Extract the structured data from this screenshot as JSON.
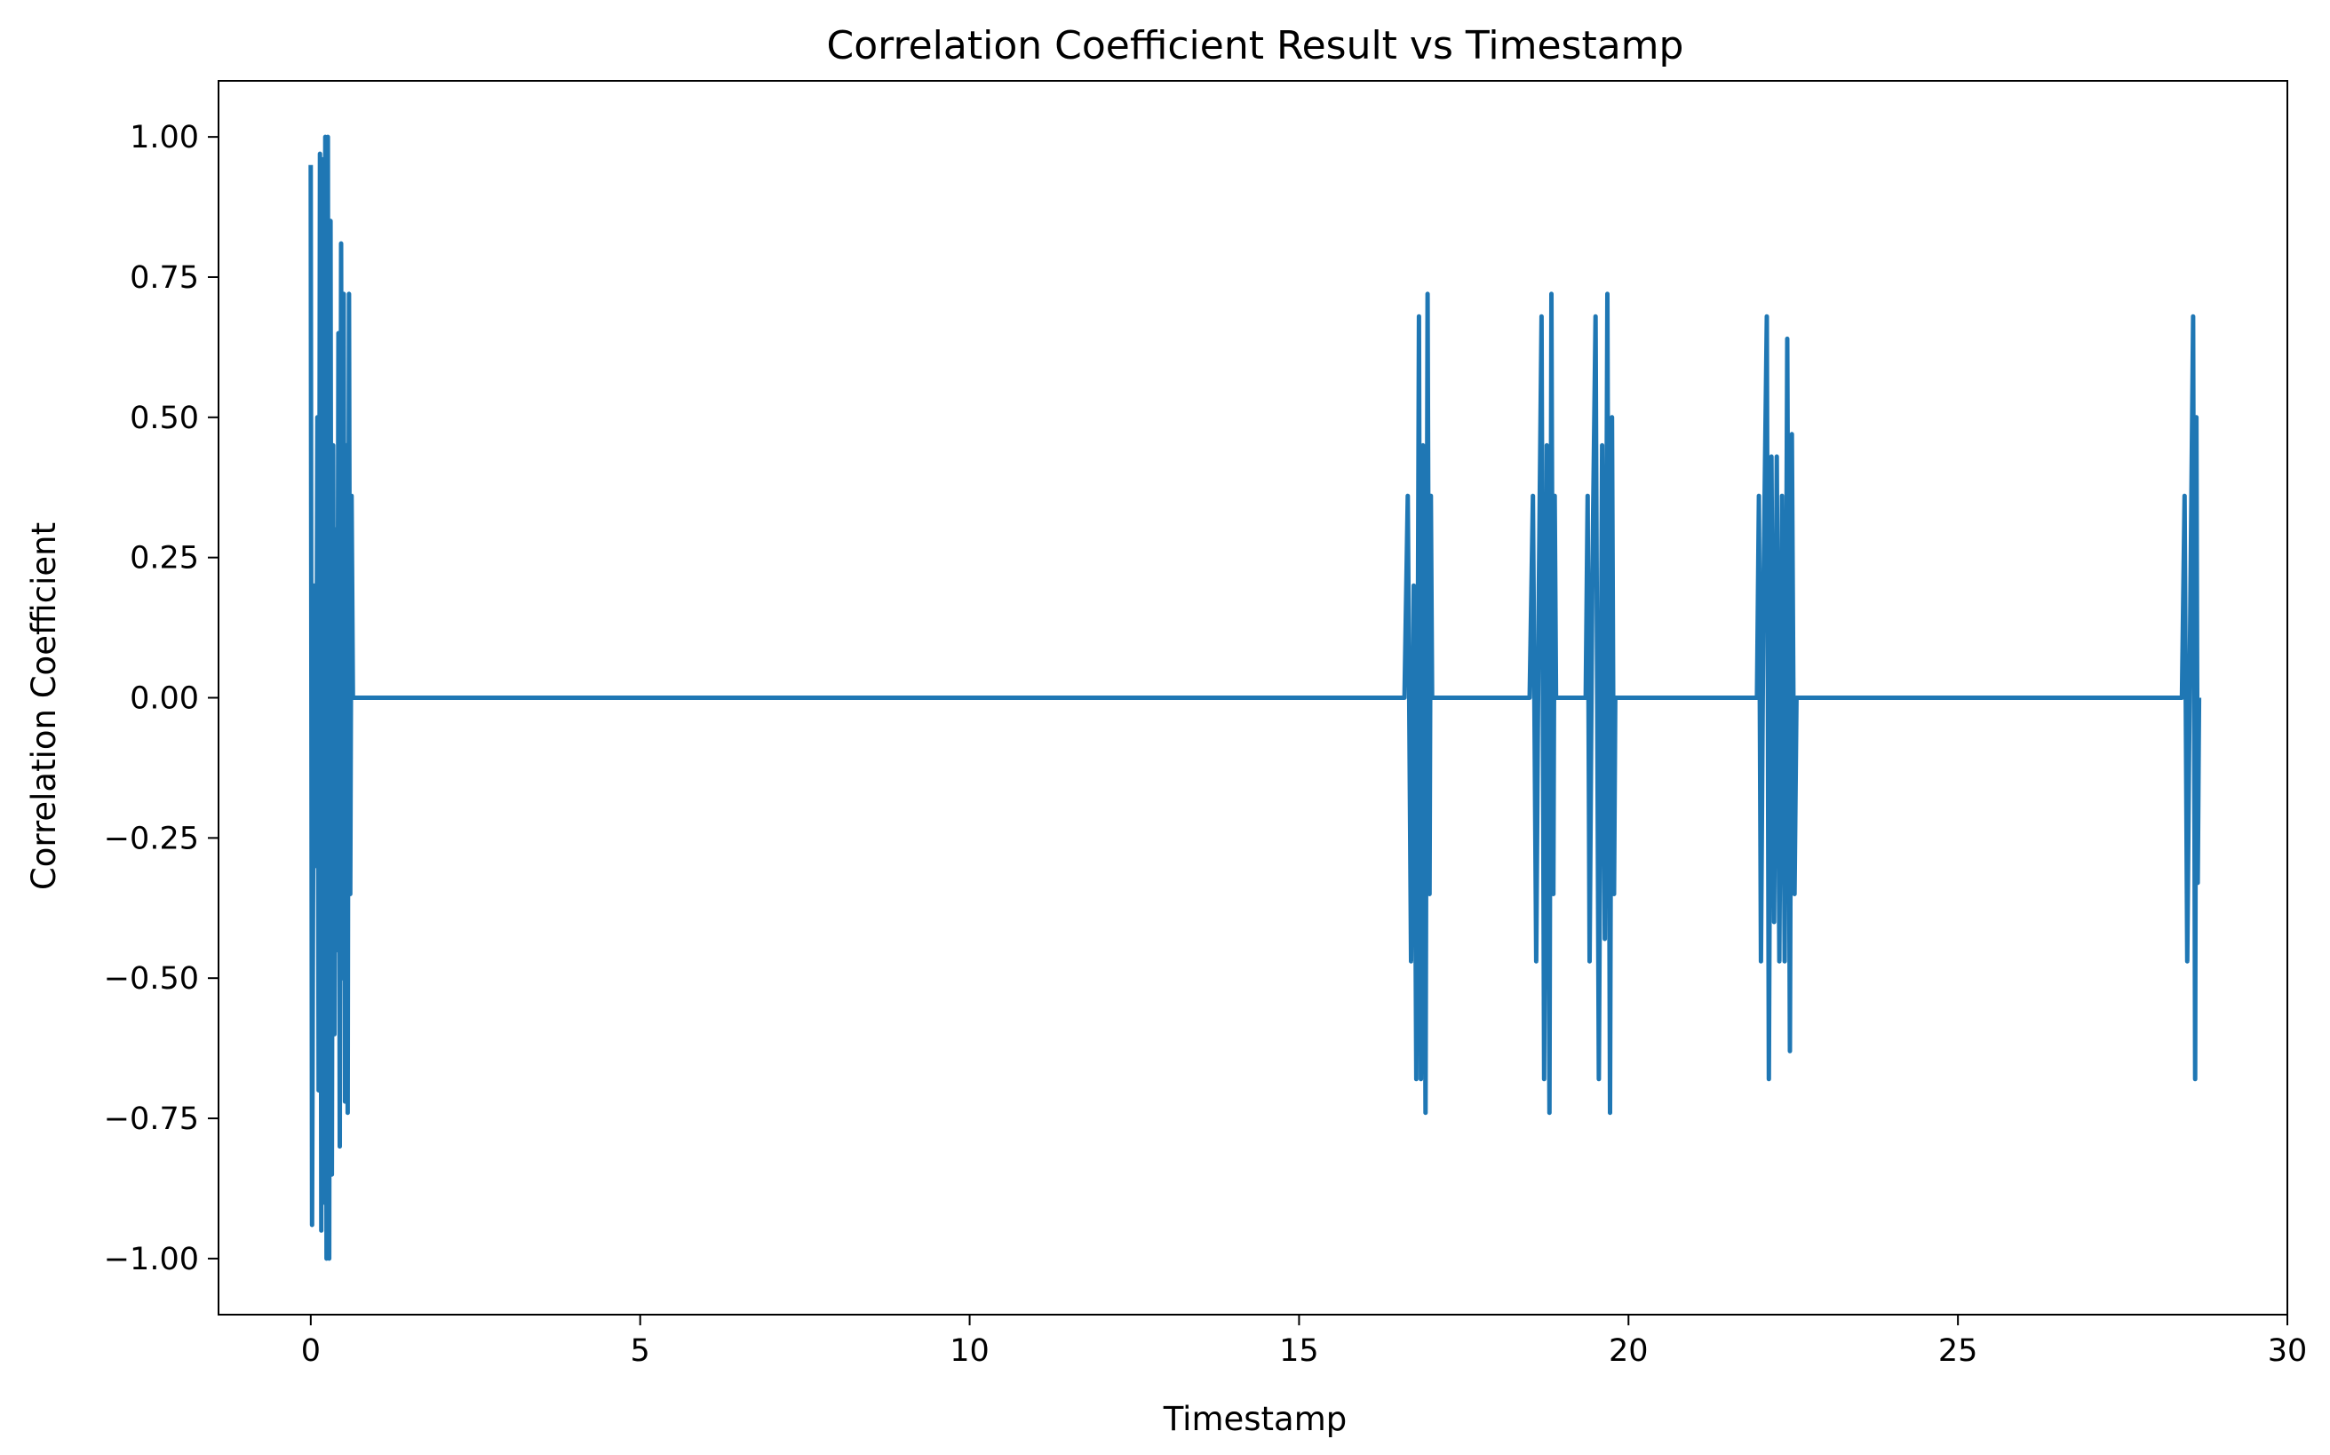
{
  "chart_data": {
    "type": "line",
    "title": "Correlation Coefficient Result vs Timestamp",
    "xlabel": "Timestamp",
    "ylabel": "Correlation Coefficient",
    "xlim": [
      -1.4,
      30.0
    ],
    "ylim": [
      -1.1,
      1.1
    ],
    "x_ticks": [
      0,
      5,
      10,
      15,
      20,
      25,
      30
    ],
    "y_ticks": [
      1.0,
      0.75,
      0.5,
      0.25,
      0.0,
      -0.25,
      -0.5,
      -0.75,
      -1.0
    ],
    "x_tick_labels": [
      "0",
      "5",
      "10",
      "15",
      "20",
      "25",
      "30"
    ],
    "y_tick_labels": [
      "1.00",
      "0.75",
      "0.50",
      "0.25",
      "0.00",
      "−0.25",
      "−0.50",
      "−0.75",
      "−1.00"
    ],
    "grid": false,
    "legend": "none",
    "series": [
      {
        "color": "#1f77b4",
        "points": [
          [
            0.0,
            0.95
          ],
          [
            0.02,
            -0.94
          ],
          [
            0.05,
            0.2
          ],
          [
            0.08,
            -0.3
          ],
          [
            0.1,
            0.5
          ],
          [
            0.12,
            -0.7
          ],
          [
            0.14,
            0.97
          ],
          [
            0.16,
            -0.95
          ],
          [
            0.18,
            0.96
          ],
          [
            0.2,
            -0.9
          ],
          [
            0.22,
            1.0
          ],
          [
            0.24,
            -1.0
          ],
          [
            0.26,
            1.0
          ],
          [
            0.28,
            -1.0
          ],
          [
            0.3,
            0.85
          ],
          [
            0.32,
            -0.85
          ],
          [
            0.34,
            0.45
          ],
          [
            0.36,
            -0.6
          ],
          [
            0.38,
            0.3
          ],
          [
            0.4,
            -0.45
          ],
          [
            0.42,
            0.65
          ],
          [
            0.44,
            -0.8
          ],
          [
            0.46,
            0.81
          ],
          [
            0.48,
            -0.5
          ],
          [
            0.5,
            0.72
          ],
          [
            0.52,
            -0.72
          ],
          [
            0.54,
            0.45
          ],
          [
            0.56,
            -0.74
          ],
          [
            0.58,
            0.72
          ],
          [
            0.6,
            -0.35
          ],
          [
            0.62,
            0.36
          ],
          [
            0.64,
            0.0
          ],
          [
            16.6,
            0.0
          ],
          [
            16.65,
            0.36
          ],
          [
            16.7,
            -0.47
          ],
          [
            16.74,
            0.2
          ],
          [
            16.78,
            -0.68
          ],
          [
            16.82,
            0.68
          ],
          [
            16.85,
            -0.68
          ],
          [
            16.88,
            0.45
          ],
          [
            16.92,
            -0.74
          ],
          [
            16.95,
            0.72
          ],
          [
            16.98,
            -0.35
          ],
          [
            17.0,
            0.36
          ],
          [
            17.02,
            0.0
          ],
          [
            18.5,
            0.0
          ],
          [
            18.55,
            0.36
          ],
          [
            18.6,
            -0.47
          ],
          [
            18.64,
            0.2
          ],
          [
            18.68,
            0.68
          ],
          [
            18.72,
            -0.68
          ],
          [
            18.76,
            0.45
          ],
          [
            18.8,
            -0.74
          ],
          [
            18.83,
            0.72
          ],
          [
            18.86,
            -0.35
          ],
          [
            18.88,
            0.36
          ],
          [
            18.9,
            0.0
          ],
          [
            19.35,
            0.0
          ],
          [
            19.38,
            0.36
          ],
          [
            19.41,
            -0.47
          ],
          [
            19.45,
            0.2
          ],
          [
            19.5,
            0.68
          ],
          [
            19.55,
            -0.68
          ],
          [
            19.6,
            0.45
          ],
          [
            19.64,
            -0.43
          ],
          [
            19.68,
            0.72
          ],
          [
            19.72,
            -0.74
          ],
          [
            19.75,
            0.5
          ],
          [
            19.78,
            -0.35
          ],
          [
            19.8,
            0.0
          ],
          [
            21.95,
            0.0
          ],
          [
            21.98,
            0.36
          ],
          [
            22.01,
            -0.47
          ],
          [
            22.05,
            0.2
          ],
          [
            22.1,
            0.68
          ],
          [
            22.13,
            -0.68
          ],
          [
            22.17,
            0.43
          ],
          [
            22.21,
            -0.4
          ],
          [
            22.25,
            0.43
          ],
          [
            22.29,
            -0.47
          ],
          [
            22.33,
            0.36
          ],
          [
            22.37,
            -0.47
          ],
          [
            22.41,
            0.64
          ],
          [
            22.45,
            -0.63
          ],
          [
            22.48,
            0.47
          ],
          [
            22.52,
            -0.35
          ],
          [
            22.55,
            0.0
          ],
          [
            28.4,
            0.0
          ],
          [
            28.44,
            0.36
          ],
          [
            28.48,
            -0.47
          ],
          [
            28.53,
            0.2
          ],
          [
            28.57,
            0.68
          ],
          [
            28.6,
            -0.68
          ],
          [
            28.62,
            0.5
          ],
          [
            28.64,
            -0.33
          ],
          [
            28.66,
            0.0
          ]
        ]
      }
    ]
  }
}
